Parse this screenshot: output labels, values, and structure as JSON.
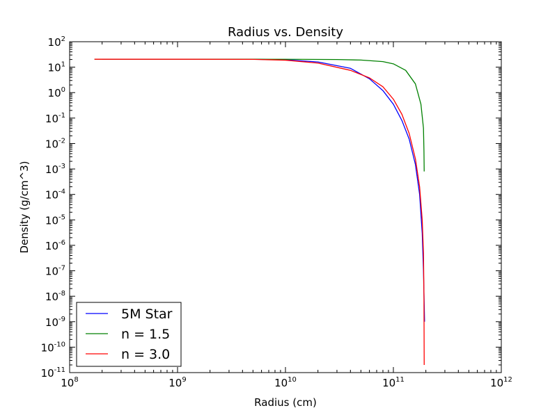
{
  "chart_data": {
    "type": "line",
    "title": "Radius vs. Density",
    "xlabel": "Radius (cm)",
    "ylabel": "Density (g/cm^3)",
    "xscale": "log",
    "yscale": "log",
    "xlim": [
      100000000.0,
      1000000000000.0
    ],
    "ylim": [
      1e-11,
      100.0
    ],
    "grid": false,
    "legend_position": "lower-left",
    "x_tick_labels": [
      {
        "base": "10",
        "exp": "8"
      },
      {
        "base": "10",
        "exp": "9"
      },
      {
        "base": "10",
        "exp": "10"
      },
      {
        "base": "10",
        "exp": "11"
      },
      {
        "base": "10",
        "exp": "12"
      }
    ],
    "y_tick_labels": [
      {
        "base": "10",
        "exp": "2"
      },
      {
        "base": "10",
        "exp": "1"
      },
      {
        "base": "10",
        "exp": "0"
      },
      {
        "base": "10",
        "exp": "-1"
      },
      {
        "base": "10",
        "exp": "-2"
      },
      {
        "base": "10",
        "exp": "-3"
      },
      {
        "base": "10",
        "exp": "-4"
      },
      {
        "base": "10",
        "exp": "-5"
      },
      {
        "base": "10",
        "exp": "-6"
      },
      {
        "base": "10",
        "exp": "-7"
      },
      {
        "base": "10",
        "exp": "-8"
      },
      {
        "base": "10",
        "exp": "-9"
      },
      {
        "base": "10",
        "exp": "-10"
      },
      {
        "base": "10",
        "exp": "-11"
      }
    ],
    "series": [
      {
        "name": "5M Star",
        "color": "#0000ff",
        "x": [
          200000000.0,
          1000000000.0,
          5000000000.0,
          10000000000.0,
          20000000000.0,
          40000000000.0,
          60000000000.0,
          80000000000.0,
          100000000000.0,
          120000000000.0,
          140000000000.0,
          160000000000.0,
          175000000000.0,
          185000000000.0,
          190000000000.0,
          193000000000.0,
          194500000000.0
        ],
        "y": [
          20.5,
          20.5,
          20.4,
          19.5,
          16,
          9,
          3.5,
          1.2,
          0.35,
          0.08,
          0.015,
          0.0015,
          0.0001,
          3e-06,
          1e-07,
          5e-09,
          1e-09
        ]
      },
      {
        "name": "n = 1.5",
        "color": "#008000",
        "x": [
          170000000.0,
          1000000000.0,
          5000000000.0,
          10000000000.0,
          30000000000.0,
          50000000000.0,
          80000000000.0,
          100000000000.0,
          130000000000.0,
          160000000000.0,
          180000000000.0,
          190000000000.0,
          192000000000.0,
          193000000000.0
        ],
        "y": [
          20.5,
          20.5,
          20.5,
          20.4,
          20,
          19,
          16.5,
          13.5,
          7.5,
          2.2,
          0.35,
          0.04,
          0.005,
          0.0008
        ]
      },
      {
        "name": "n = 3.0",
        "color": "#ff0000",
        "x": [
          170000000.0,
          1000000000.0,
          5000000000.0,
          10000000000.0,
          20000000000.0,
          40000000000.0,
          60000000000.0,
          80000000000.0,
          100000000000.0,
          120000000000.0,
          140000000000.0,
          160000000000.0,
          175000000000.0,
          185000000000.0,
          190000000000.0,
          192000000000.0,
          193000000000.0
        ],
        "y": [
          20.5,
          20.5,
          20.3,
          18.8,
          14.5,
          7.5,
          3.8,
          1.7,
          0.55,
          0.14,
          0.025,
          0.0025,
          0.0002,
          1e-05,
          5e-07,
          1e-08,
          2e-11
        ]
      }
    ]
  }
}
